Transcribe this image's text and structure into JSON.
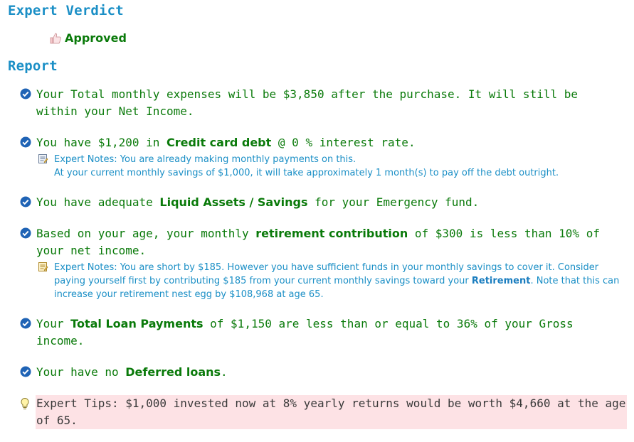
{
  "headings": {
    "verdict": "Expert Verdict",
    "report": "Report"
  },
  "verdict": {
    "status": "Approved",
    "icon": "thumbs-up-icon"
  },
  "report": {
    "expenses": {
      "text": "Your Total monthly expenses will be $3,850 after the purchase. It will still be within your Net Income."
    },
    "credit": {
      "prefix": "You have $1,200 in ",
      "bold": "Credit card debt",
      "suffix": " @ 0 % interest rate.",
      "note_line1": "Expert Notes: You are already making monthly payments on this.",
      "note_line2": "At your current monthly savings of $1,000, it will take approximately 1 month(s) to pay off the debt outright."
    },
    "liquid": {
      "prefix": "You have adequate ",
      "bold": "Liquid Assets / Savings",
      "suffix": " for your Emergency fund."
    },
    "retirement": {
      "prefix": "Based on your age, your monthly ",
      "bold": "retirement contribution",
      "suffix": " of $300 is less than 10% of your net income.",
      "note_prefix": "Expert Notes: You are short by $185. However you have sufficient funds in your monthly savings to cover it. Consider paying yourself first by contributing $185 from your current monthly savings toward your ",
      "note_bold": "Retirement",
      "note_suffix": ". Note that this can increase your retirement nest egg by $108,968 at age 65."
    },
    "loans": {
      "prefix": "Your ",
      "bold": "Total Loan Payments",
      "suffix": " of $1,150 are less than or equal to 36% of your Gross income."
    },
    "deferred": {
      "prefix": "Your have no ",
      "bold": "Deferred loans",
      "suffix": "."
    },
    "tip": {
      "text": "Expert Tips: $1,000 invested now at 8% yearly returns would be worth $4,660 at the age of 65."
    }
  },
  "colors": {
    "heading": "#1b8fc6",
    "text_green": "#0a7a0a",
    "note_blue": "#1b8fc6",
    "tip_bg": "#fde2e5"
  }
}
